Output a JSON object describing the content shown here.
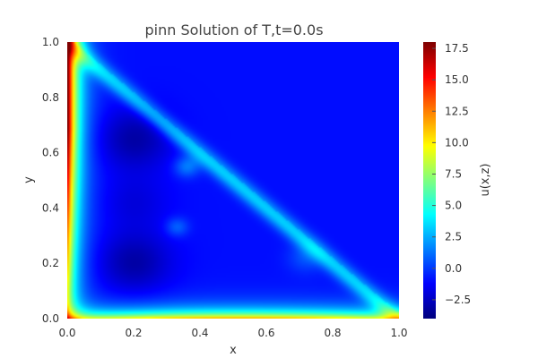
{
  "chart_data": {
    "type": "heatmap",
    "title": "pinn Solution of T,t=0.0s",
    "xlabel": "x",
    "ylabel": "y",
    "colorbar_label": "u(x,z)",
    "xlim": [
      0.0,
      1.0
    ],
    "ylim": [
      0.0,
      1.0
    ],
    "x_ticks": [
      "0.0",
      "0.2",
      "0.4",
      "0.6",
      "0.8",
      "1.0"
    ],
    "y_ticks": [
      "0.0",
      "0.2",
      "0.4",
      "0.6",
      "0.8",
      "1.0"
    ],
    "colorbar_range": [
      -4.0,
      18.0
    ],
    "colorbar_ticks": [
      "−2.5",
      "0.0",
      "2.5",
      "5.0",
      "7.5",
      "10.0",
      "12.5",
      "15.0",
      "17.5"
    ],
    "colorbar_tick_values": [
      -2.5,
      0.0,
      2.5,
      5.0,
      7.5,
      10.0,
      12.5,
      15.0,
      17.5
    ],
    "colormap": "jet",
    "grid": false,
    "features": [
      {
        "region": "left edge x≈0",
        "value": 17.5
      },
      {
        "region": "bottom edge y≈0",
        "value": 11
      },
      {
        "region": "diagonal band from (0,1) to (1,0)",
        "value": 4
      },
      {
        "region": "interior minima near (0.2,0.65) and (0.2,0.2)",
        "value": -3
      }
    ]
  }
}
